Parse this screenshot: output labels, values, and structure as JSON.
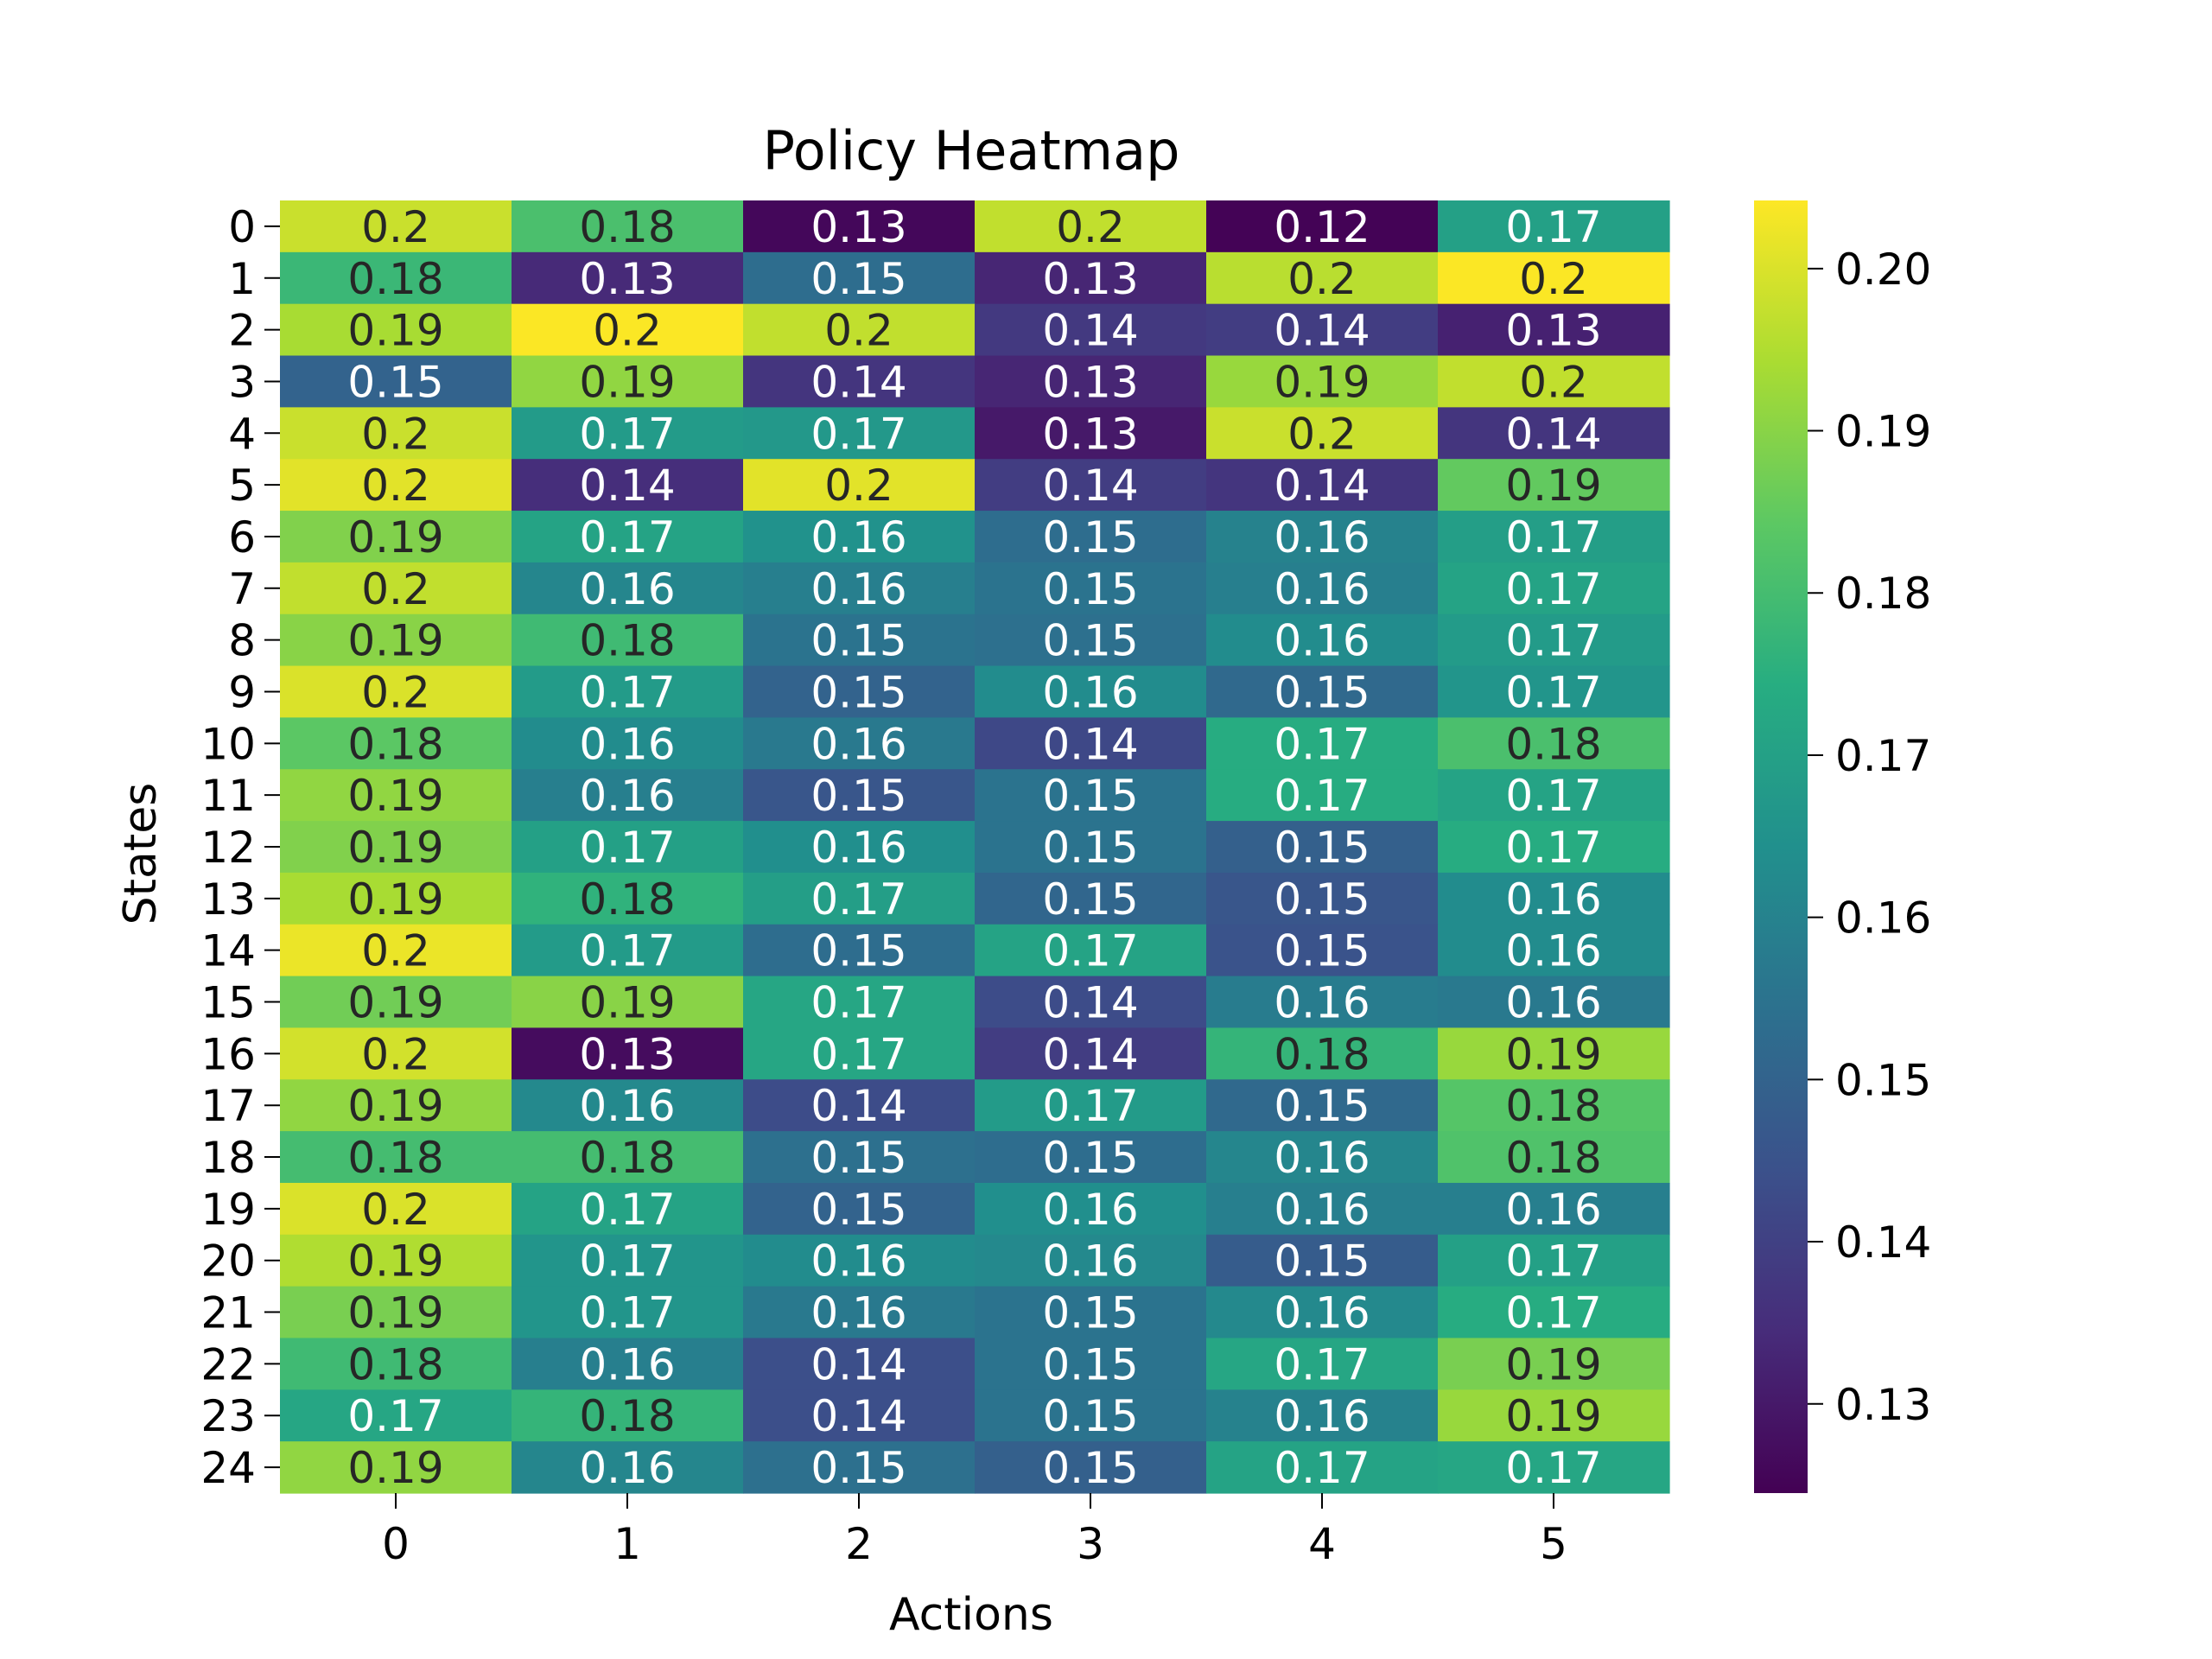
{
  "chart_data": {
    "type": "heatmap",
    "title": "Policy Heatmap",
    "xlabel": "Actions",
    "ylabel": "States",
    "x_categories": [
      "0",
      "1",
      "2",
      "3",
      "4",
      "5"
    ],
    "y_categories": [
      "0",
      "1",
      "2",
      "3",
      "4",
      "5",
      "6",
      "7",
      "8",
      "9",
      "10",
      "11",
      "12",
      "13",
      "14",
      "15",
      "16",
      "17",
      "18",
      "19",
      "20",
      "21",
      "22",
      "23",
      "24"
    ],
    "values": [
      [
        0.198,
        0.181,
        0.126,
        0.197,
        0.125,
        0.17
      ],
      [
        0.178,
        0.134,
        0.153,
        0.133,
        0.196,
        0.204
      ],
      [
        0.194,
        0.204,
        0.197,
        0.138,
        0.139,
        0.132
      ],
      [
        0.15,
        0.191,
        0.137,
        0.133,
        0.192,
        0.197
      ],
      [
        0.198,
        0.168,
        0.167,
        0.13,
        0.198,
        0.137
      ],
      [
        0.201,
        0.135,
        0.201,
        0.139,
        0.137,
        0.185
      ],
      [
        0.189,
        0.171,
        0.165,
        0.153,
        0.16,
        0.169
      ],
      [
        0.197,
        0.161,
        0.159,
        0.155,
        0.159,
        0.171
      ],
      [
        0.19,
        0.179,
        0.155,
        0.154,
        0.163,
        0.168
      ],
      [
        0.2,
        0.168,
        0.15,
        0.163,
        0.152,
        0.166
      ],
      [
        0.184,
        0.163,
        0.157,
        0.142,
        0.174,
        0.181
      ],
      [
        0.191,
        0.159,
        0.146,
        0.155,
        0.174,
        0.171
      ],
      [
        0.189,
        0.17,
        0.164,
        0.155,
        0.149,
        0.174
      ],
      [
        0.194,
        0.176,
        0.169,
        0.151,
        0.146,
        0.163
      ],
      [
        0.202,
        0.168,
        0.153,
        0.171,
        0.145,
        0.163
      ],
      [
        0.187,
        0.19,
        0.172,
        0.143,
        0.158,
        0.157
      ],
      [
        0.199,
        0.127,
        0.172,
        0.139,
        0.177,
        0.192
      ],
      [
        0.191,
        0.162,
        0.143,
        0.168,
        0.152,
        0.183
      ],
      [
        0.18,
        0.18,
        0.154,
        0.153,
        0.161,
        0.182
      ],
      [
        0.2,
        0.171,
        0.15,
        0.164,
        0.159,
        0.159
      ],
      [
        0.195,
        0.166,
        0.163,
        0.162,
        0.148,
        0.17
      ],
      [
        0.188,
        0.166,
        0.157,
        0.155,
        0.162,
        0.174
      ],
      [
        0.179,
        0.159,
        0.144,
        0.155,
        0.172,
        0.188
      ],
      [
        0.172,
        0.177,
        0.144,
        0.155,
        0.16,
        0.192
      ],
      [
        0.191,
        0.161,
        0.154,
        0.149,
        0.171,
        0.172
      ]
    ],
    "cell_labels": [
      [
        "0.2",
        "0.18",
        "0.13",
        "0.2",
        "0.12",
        "0.17"
      ],
      [
        "0.18",
        "0.13",
        "0.15",
        "0.13",
        "0.2",
        "0.2"
      ],
      [
        "0.19",
        "0.2",
        "0.2",
        "0.14",
        "0.14",
        "0.13"
      ],
      [
        "0.15",
        "0.19",
        "0.14",
        "0.13",
        "0.19",
        "0.2"
      ],
      [
        "0.2",
        "0.17",
        "0.17",
        "0.13",
        "0.2",
        "0.14"
      ],
      [
        "0.2",
        "0.14",
        "0.2",
        "0.14",
        "0.14",
        "0.19"
      ],
      [
        "0.19",
        "0.17",
        "0.16",
        "0.15",
        "0.16",
        "0.17"
      ],
      [
        "0.2",
        "0.16",
        "0.16",
        "0.15",
        "0.16",
        "0.17"
      ],
      [
        "0.19",
        "0.18",
        "0.15",
        "0.15",
        "0.16",
        "0.17"
      ],
      [
        "0.2",
        "0.17",
        "0.15",
        "0.16",
        "0.15",
        "0.17"
      ],
      [
        "0.18",
        "0.16",
        "0.16",
        "0.14",
        "0.17",
        "0.18"
      ],
      [
        "0.19",
        "0.16",
        "0.15",
        "0.15",
        "0.17",
        "0.17"
      ],
      [
        "0.19",
        "0.17",
        "0.16",
        "0.15",
        "0.15",
        "0.17"
      ],
      [
        "0.19",
        "0.18",
        "0.17",
        "0.15",
        "0.15",
        "0.16"
      ],
      [
        "0.2",
        "0.17",
        "0.15",
        "0.17",
        "0.15",
        "0.16"
      ],
      [
        "0.19",
        "0.19",
        "0.17",
        "0.14",
        "0.16",
        "0.16"
      ],
      [
        "0.2",
        "0.13",
        "0.17",
        "0.14",
        "0.18",
        "0.19"
      ],
      [
        "0.19",
        "0.16",
        "0.14",
        "0.17",
        "0.15",
        "0.18"
      ],
      [
        "0.18",
        "0.18",
        "0.15",
        "0.15",
        "0.16",
        "0.18"
      ],
      [
        "0.2",
        "0.17",
        "0.15",
        "0.16",
        "0.16",
        "0.16"
      ],
      [
        "0.19",
        "0.17",
        "0.16",
        "0.16",
        "0.15",
        "0.17"
      ],
      [
        "0.19",
        "0.17",
        "0.16",
        "0.15",
        "0.16",
        "0.17"
      ],
      [
        "0.18",
        "0.16",
        "0.14",
        "0.15",
        "0.17",
        "0.19"
      ],
      [
        "0.17",
        "0.18",
        "0.14",
        "0.15",
        "0.16",
        "0.19"
      ],
      [
        "0.19",
        "0.16",
        "0.15",
        "0.15",
        "0.17",
        "0.17"
      ]
    ],
    "colormap": "viridis",
    "vmin": 0.1245,
    "vmax": 0.2042,
    "colorbar_ticks": [
      0.13,
      0.14,
      0.15,
      0.16,
      0.17,
      0.18,
      0.19,
      0.2
    ],
    "colorbar_tick_labels": [
      "0.13",
      "0.14",
      "0.15",
      "0.16",
      "0.17",
      "0.18",
      "0.19",
      "0.20"
    ],
    "grid": false,
    "colorbar": "right"
  }
}
